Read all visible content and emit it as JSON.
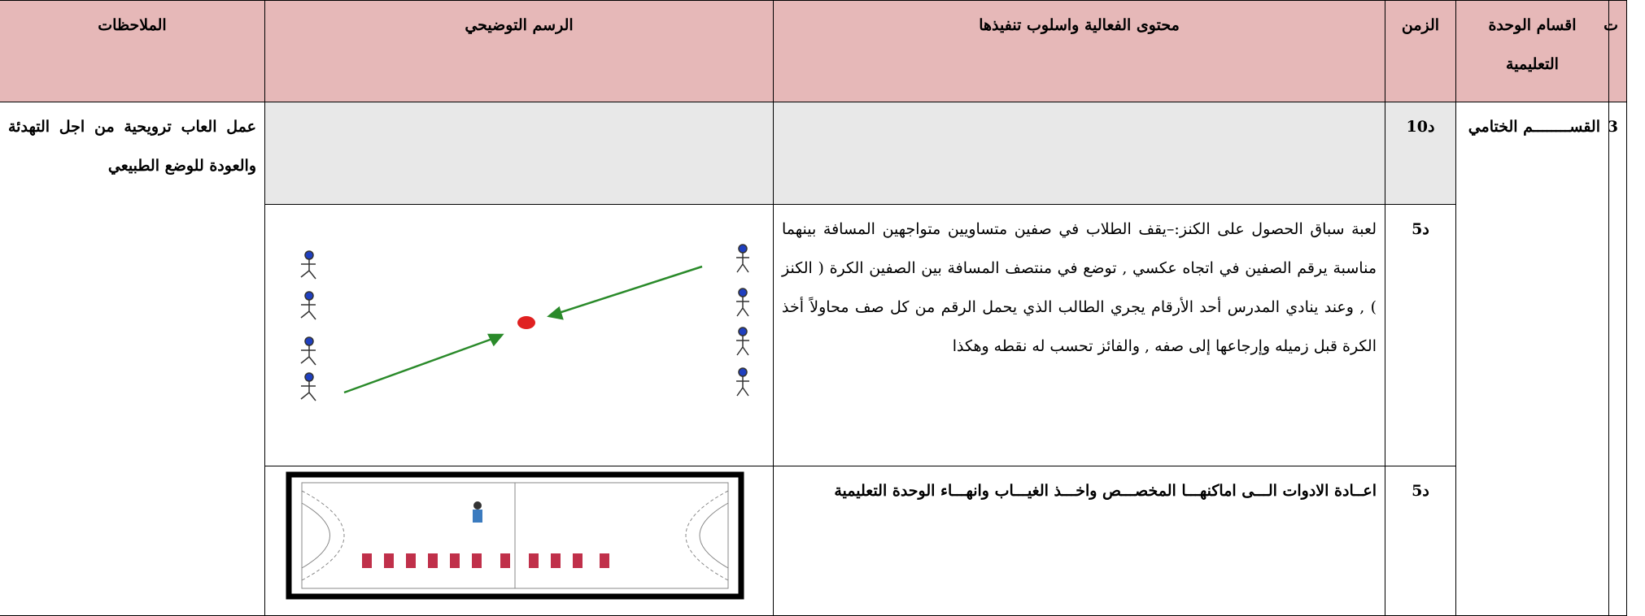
{
  "table": {
    "headers": [
      "ت",
      "اقسام الوحدة التعليمية",
      "الزمن",
      "محتوى الفعالية واسلوب تنفيذها",
      "الرسم التوضيحي",
      "الملاحظات"
    ],
    "section": {
      "number": "3",
      "name": "القســــــــم الختامي",
      "time": "د10",
      "notes": "عمل العاب ترويحية من اجل التهدئة والعودة للوضع الطبيعي"
    },
    "rows": [
      {
        "time": "د5",
        "content": "لعبة سباق الحصول على الكنز:–يقف الطلاب في صفين متساويين متواجهين المسافة بينهما مناسبة يرقم الصفين في اتجاه عكسي , توضع في منتصف المسافة بين الصفين الكرة ( الكنز ) , وعند ينادي المدرس أحد الأرقام يجري الطالب الذي يحمل الرقم من كل صف محاولاً أخذ الكرة قبل زميله وإرجاعها إلى صفه , والفائز تحسب له نقطه وهكذا"
      },
      {
        "time": "د5",
        "content": "اعــادة الادوات الـــى اماكنهـــا المخصـــص واخـــذ الغيـــاب وانهـــاء الوحدة التعليمية"
      }
    ]
  }
}
